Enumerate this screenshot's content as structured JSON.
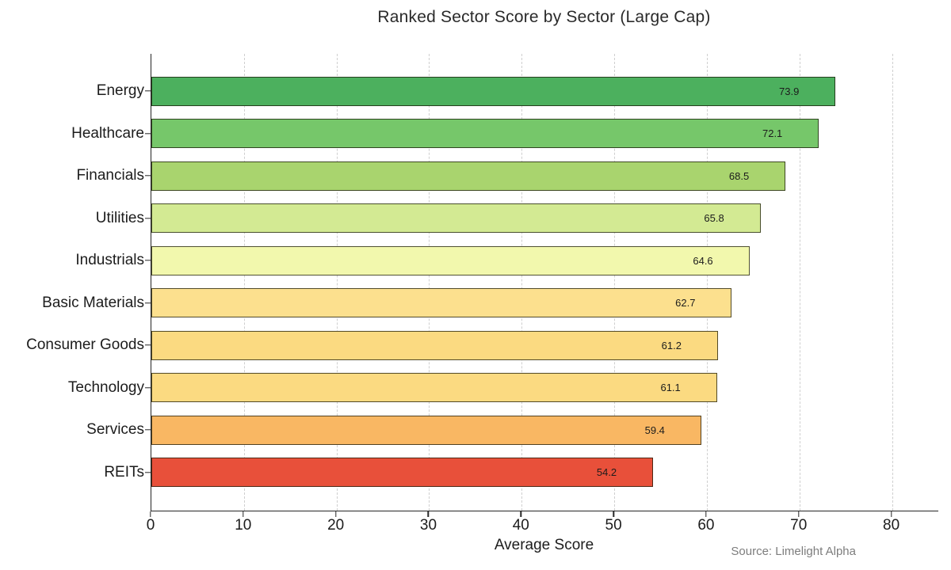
{
  "title": "Ranked Sector Score by Sector (Large Cap)",
  "source_note": "Source: Limelight Alpha",
  "chart_data": {
    "type": "bar",
    "orientation": "horizontal",
    "title": "Ranked Sector Score by Sector (Large Cap)",
    "xlabel": "Average Score",
    "ylabel": "",
    "categories": [
      "Energy",
      "Healthcare",
      "Financials",
      "Utilities",
      "Industrials",
      "Basic Materials",
      "Consumer Goods",
      "Technology",
      "Services",
      "REITs"
    ],
    "values": [
      73.9,
      72.1,
      68.5,
      65.8,
      64.6,
      62.7,
      61.2,
      61.1,
      59.4,
      54.2
    ],
    "value_labels": [
      "73.9",
      "72.1",
      "68.5",
      "65.8",
      "64.6",
      "62.7",
      "61.2",
      "61.1",
      "59.4",
      "54.2"
    ],
    "bar_colors": [
      "#4cb05e",
      "#76c76a",
      "#a9d46e",
      "#d3ea93",
      "#f2f8ad",
      "#fce08e",
      "#fbda81",
      "#fbda81",
      "#f9b763",
      "#e8503a"
    ],
    "xlim": [
      0,
      85
    ],
    "xticks": [
      0,
      10,
      20,
      30,
      40,
      50,
      60,
      70,
      80
    ],
    "grid": "vertical-dashed",
    "legend": "none",
    "colors": {
      "grid": "#cfcfcf",
      "axis": "#262626",
      "text": "#1c1c1c",
      "muted": "#7d7d7d",
      "background": "#ffffff"
    }
  }
}
